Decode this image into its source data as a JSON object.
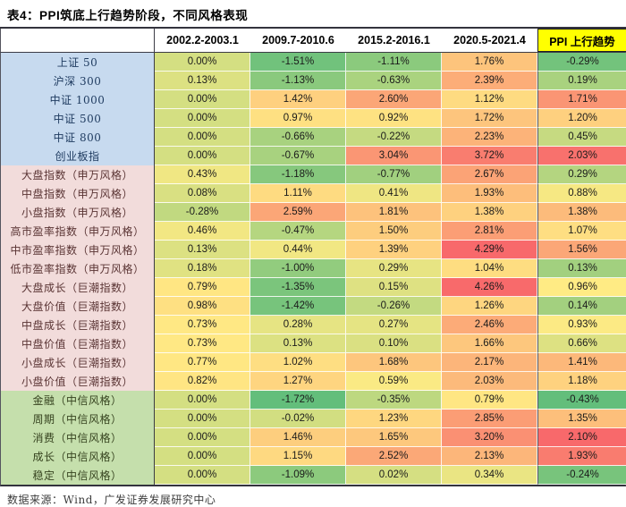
{
  "title": "表4：PPI筑底上行趋势阶段，不同风格表现",
  "footer": "数据来源：Wind，广发证券发展研究中心",
  "colors": {
    "header_highlight_bg": "#FFFF00",
    "scale_min": "#63BE7B",
    "scale_mid": "#FFEB84",
    "scale_max": "#F8696B",
    "group_bg": {
      "broad": "#C7DAEF",
      "style": "#F2DCDB",
      "citic": "#C5DFAC"
    },
    "group_fg": {
      "broad": "#1e3a5f",
      "style": "#5a3434",
      "citic": "#36431f"
    }
  },
  "chart_data": {
    "type": "heatmap",
    "title": "表4：PPI筑底上行趋势阶段，不同风格表现",
    "value_unit": "%",
    "legend_position": "none",
    "columns": [
      "2002.2-2003.1",
      "2009.7-2010.6",
      "2015.2-2016.1",
      "2020.5-2021.4",
      "PPI 上行趋势"
    ],
    "highlight_column_index": 4,
    "color_scale_note": "3-color scale green-yellow-red; last column scaled independently",
    "rows": [
      {
        "label": "上证 50",
        "group": "broad",
        "values": [
          0.0,
          -1.51,
          -1.11,
          1.76,
          -0.29
        ]
      },
      {
        "label": "沪深 300",
        "group": "broad",
        "values": [
          0.13,
          -1.13,
          -0.63,
          2.39,
          0.19
        ]
      },
      {
        "label": "中证 1000",
        "group": "broad",
        "values": [
          0.0,
          1.42,
          2.6,
          1.12,
          1.71
        ]
      },
      {
        "label": "中证 500",
        "group": "broad",
        "values": [
          0.0,
          0.97,
          0.92,
          1.72,
          1.2
        ]
      },
      {
        "label": "中证 800",
        "group": "broad",
        "values": [
          0.0,
          -0.66,
          -0.22,
          2.23,
          0.45
        ]
      },
      {
        "label": "创业板指",
        "group": "broad",
        "values": [
          0.0,
          -0.67,
          3.04,
          3.72,
          2.03
        ]
      },
      {
        "label": "大盘指数（申万风格）",
        "group": "style",
        "values": [
          0.43,
          -1.18,
          -0.77,
          2.67,
          0.29
        ]
      },
      {
        "label": "中盘指数（申万风格）",
        "group": "style",
        "values": [
          0.08,
          1.11,
          0.41,
          1.93,
          0.88
        ]
      },
      {
        "label": "小盘指数（申万风格）",
        "group": "style",
        "values": [
          -0.28,
          2.59,
          1.81,
          1.38,
          1.38
        ]
      },
      {
        "label": "高市盈率指数（申万风格）",
        "group": "style",
        "values": [
          0.46,
          -0.47,
          1.5,
          2.81,
          1.07
        ]
      },
      {
        "label": "中市盈率指数（申万风格）",
        "group": "style",
        "values": [
          0.13,
          0.44,
          1.39,
          4.29,
          1.56
        ]
      },
      {
        "label": "低市盈率指数（申万风格）",
        "group": "style",
        "values": [
          0.18,
          -1.0,
          0.29,
          1.04,
          0.13
        ]
      },
      {
        "label": "大盘成长（巨潮指数）",
        "group": "style",
        "values": [
          0.79,
          -1.35,
          0.15,
          4.26,
          0.96
        ]
      },
      {
        "label": "大盘价值（巨潮指数）",
        "group": "style",
        "values": [
          0.98,
          -1.42,
          -0.26,
          1.26,
          0.14
        ]
      },
      {
        "label": "中盘成长（巨潮指数）",
        "group": "style",
        "values": [
          0.73,
          0.28,
          0.27,
          2.46,
          0.93
        ]
      },
      {
        "label": "中盘价值（巨潮指数）",
        "group": "style",
        "values": [
          0.73,
          0.13,
          0.1,
          1.66,
          0.66
        ]
      },
      {
        "label": "小盘成长（巨潮指数）",
        "group": "style",
        "values": [
          0.77,
          1.02,
          1.68,
          2.17,
          1.41
        ]
      },
      {
        "label": "小盘价值（巨潮指数）",
        "group": "style",
        "values": [
          0.82,
          1.27,
          0.59,
          2.03,
          1.18
        ]
      },
      {
        "label": "金融（中信风格）",
        "group": "citic",
        "values": [
          0.0,
          -1.72,
          -0.35,
          0.79,
          -0.43
        ]
      },
      {
        "label": "周期（中信风格）",
        "group": "citic",
        "values": [
          0.0,
          -0.02,
          1.23,
          2.85,
          1.35
        ]
      },
      {
        "label": "消费（中信风格）",
        "group": "citic",
        "values": [
          0.0,
          1.46,
          1.65,
          3.2,
          2.1
        ]
      },
      {
        "label": "成长（中信风格）",
        "group": "citic",
        "values": [
          0.0,
          1.15,
          2.52,
          2.13,
          1.93
        ]
      },
      {
        "label": "稳定（中信风格）",
        "group": "citic",
        "values": [
          0.0,
          -1.09,
          0.02,
          0.34,
          -0.24
        ]
      }
    ]
  }
}
